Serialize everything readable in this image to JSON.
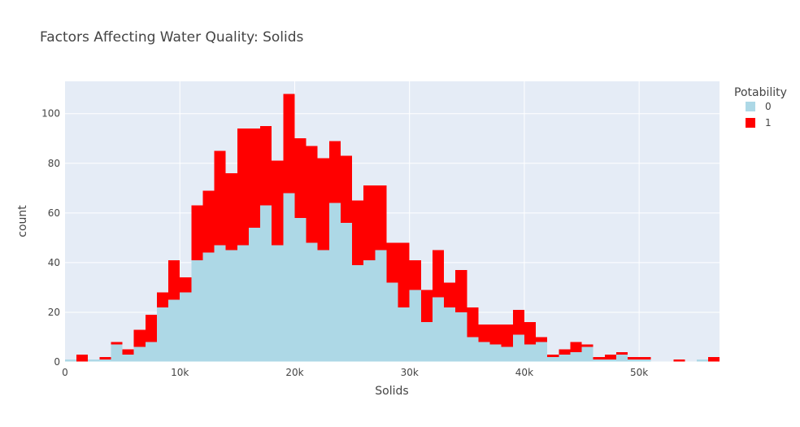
{
  "chart_data": {
    "type": "bar",
    "stacked": true,
    "title": "Factors Affecting Water Quality: Solids",
    "xlabel": "Solids",
    "ylabel": "count",
    "bin_size": 1000,
    "bin_start": 0,
    "xlim": [
      0,
      57000
    ],
    "ylim": [
      0,
      113
    ],
    "x_ticks": [
      0,
      10000,
      20000,
      30000,
      40000,
      50000
    ],
    "x_tick_labels": [
      "0",
      "10k",
      "20k",
      "30k",
      "40k",
      "50k"
    ],
    "y_ticks": [
      0,
      20,
      40,
      60,
      80,
      100
    ],
    "y_tick_labels": [
      "0",
      "20",
      "40",
      "60",
      "80",
      "100"
    ],
    "grid": true,
    "legend": {
      "title": "Potability",
      "placement": "top-right"
    },
    "series": [
      {
        "name": "0",
        "color": "#add8e6",
        "values": [
          1,
          0,
          1,
          1,
          7,
          3,
          6,
          8,
          22,
          25,
          28,
          41,
          44,
          47,
          45,
          47,
          54,
          63,
          47,
          68,
          58,
          48,
          45,
          64,
          56,
          39,
          41,
          45,
          32,
          22,
          29,
          16,
          26,
          22,
          20,
          10,
          8,
          7,
          6,
          11,
          7,
          8,
          2,
          3,
          4,
          6,
          1,
          1,
          3,
          1,
          1,
          0,
          0,
          0,
          0,
          1,
          0
        ]
      },
      {
        "name": "1",
        "color": "#ff0000",
        "values": [
          0,
          3,
          0,
          1,
          1,
          2,
          7,
          11,
          6,
          16,
          6,
          22,
          25,
          38,
          31,
          47,
          40,
          32,
          34,
          40,
          32,
          39,
          37,
          25,
          27,
          26,
          30,
          26,
          16,
          26,
          12,
          13,
          19,
          10,
          17,
          12,
          7,
          8,
          9,
          10,
          9,
          2,
          1,
          2,
          4,
          1,
          1,
          2,
          1,
          1,
          1,
          0,
          0,
          1,
          0,
          0,
          2
        ]
      }
    ]
  }
}
